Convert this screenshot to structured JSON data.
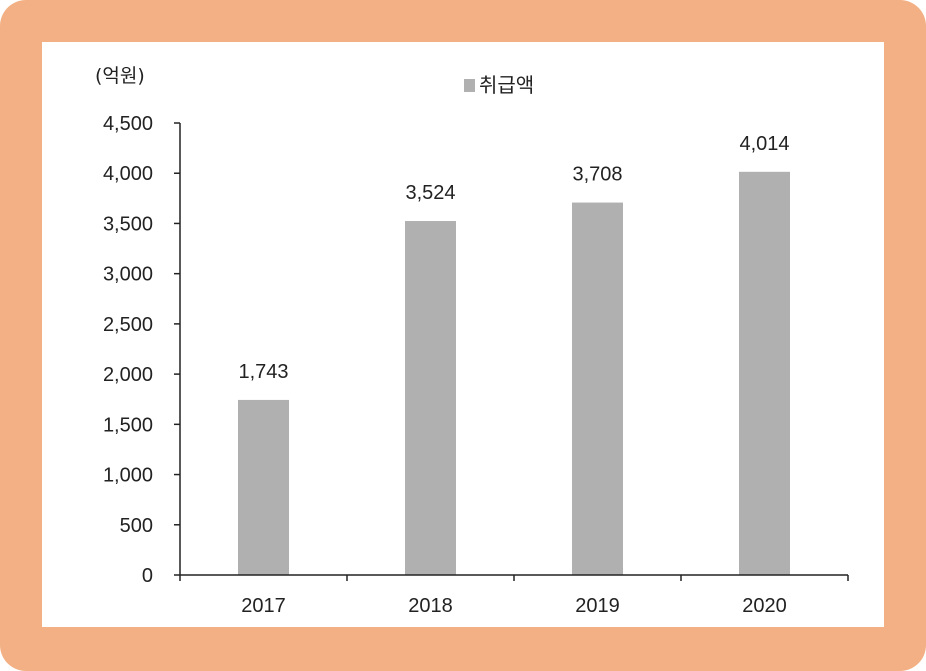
{
  "chart_data": {
    "type": "bar",
    "title": "",
    "unit_label": "(억원)",
    "xlabel": "",
    "ylabel": "",
    "categories": [
      "2017",
      "2018",
      "2019",
      "2020"
    ],
    "series": [
      {
        "name": "취급액",
        "values": [
          1743,
          3524,
          3708,
          4014
        ],
        "labels": [
          "1,743",
          "3,524",
          "3,708",
          "4,014"
        ],
        "color": "#b0b0b0"
      }
    ],
    "ylim": [
      0,
      4500
    ],
    "yticks": [
      0,
      500,
      1000,
      1500,
      2000,
      2500,
      3000,
      3500,
      4000,
      4500
    ],
    "ytick_labels": [
      "0",
      "500",
      "1,000",
      "1,500",
      "2,000",
      "2,500",
      "3,000",
      "3,500",
      "4,000",
      "4,500"
    ],
    "grid": false,
    "legend_position": "top-center"
  },
  "colors": {
    "frame": "#f2b084",
    "panel": "#ffffff",
    "axis": "#222222",
    "bar": "#b0b0b0"
  }
}
